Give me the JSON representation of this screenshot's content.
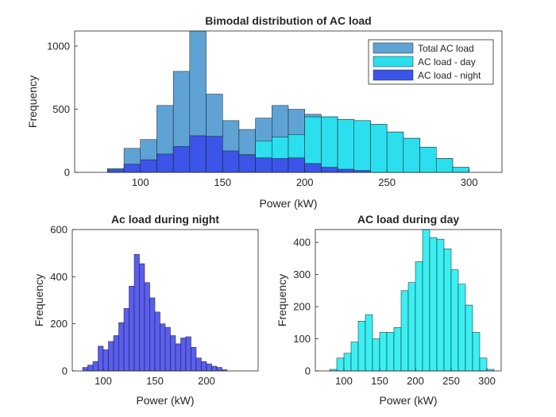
{
  "chart_data": [
    {
      "type": "bar",
      "subtype": "histogram",
      "title": "Bimodal distribution of AC load",
      "xlabel": "Power (kW)",
      "ylabel": "Frequency",
      "xlim": [
        60,
        320
      ],
      "ylim": [
        0,
        1120
      ],
      "xticks": [
        100,
        150,
        200,
        250,
        300
      ],
      "yticks": [
        0,
        500,
        1000
      ],
      "legend_position": "top-right",
      "bin_edges": [
        80,
        90,
        100,
        110,
        120,
        130,
        140,
        150,
        160,
        170,
        180,
        190,
        200,
        210,
        220,
        230,
        240,
        250,
        260,
        270,
        280,
        290,
        300
      ],
      "series": [
        {
          "name": "Total AC load",
          "color": "#5fa3d5",
          "values": [
            30,
            190,
            260,
            530,
            800,
            1130,
            620,
            410,
            340,
            430,
            530,
            500,
            460,
            440,
            420,
            410,
            380,
            320,
            270,
            200,
            110,
            40
          ]
        },
        {
          "name": "AC load - day",
          "color": "#2bdfee",
          "values": [
            5,
            15,
            35,
            50,
            100,
            155,
            70,
            80,
            140,
            250,
            280,
            300,
            440,
            440,
            420,
            410,
            380,
            320,
            270,
            200,
            110,
            40
          ]
        },
        {
          "name": "AC load - night",
          "color": "#3a55e8",
          "values": [
            20,
            65,
            100,
            145,
            205,
            290,
            285,
            170,
            135,
            115,
            110,
            115,
            70,
            40,
            25,
            15,
            0,
            0,
            0,
            0,
            0,
            0
          ]
        }
      ]
    },
    {
      "type": "bar",
      "subtype": "histogram",
      "title": "Ac load during night",
      "xlabel": "Power (kW)",
      "ylabel": "Frequency",
      "color": "#5a5ef0",
      "xlim": [
        70,
        250
      ],
      "ylim": [
        0,
        600
      ],
      "xticks": [
        100,
        150,
        200
      ],
      "yticks": [
        0,
        200,
        400,
        600
      ],
      "bin_edges": [
        80,
        85,
        90,
        95,
        100,
        105,
        110,
        115,
        120,
        125,
        130,
        135,
        140,
        145,
        150,
        155,
        160,
        165,
        170,
        175,
        180,
        185,
        190,
        195,
        200,
        205,
        210,
        215,
        220
      ],
      "values": [
        15,
        25,
        40,
        105,
        90,
        125,
        150,
        205,
        265,
        360,
        495,
        455,
        375,
        310,
        250,
        200,
        185,
        150,
        115,
        140,
        145,
        100,
        55,
        40,
        30,
        20,
        15,
        5
      ]
    },
    {
      "type": "bar",
      "subtype": "histogram",
      "title": "AC load during day",
      "xlabel": "Power (kW)",
      "ylabel": "Frequency",
      "color": "#3bf0f2",
      "xlim": [
        60,
        320
      ],
      "ylim": [
        0,
        440
      ],
      "xticks": [
        100,
        150,
        200,
        250,
        300
      ],
      "yticks": [
        0,
        100,
        200,
        300,
        400
      ],
      "bin_edges": [
        80,
        90,
        100,
        110,
        120,
        130,
        140,
        150,
        160,
        170,
        180,
        190,
        200,
        210,
        220,
        230,
        240,
        250,
        260,
        270,
        280,
        290,
        300,
        310
      ],
      "values": [
        5,
        40,
        55,
        90,
        155,
        175,
        100,
        120,
        120,
        135,
        250,
        275,
        340,
        440,
        415,
        410,
        380,
        315,
        270,
        205,
        120,
        40,
        5
      ]
    }
  ]
}
